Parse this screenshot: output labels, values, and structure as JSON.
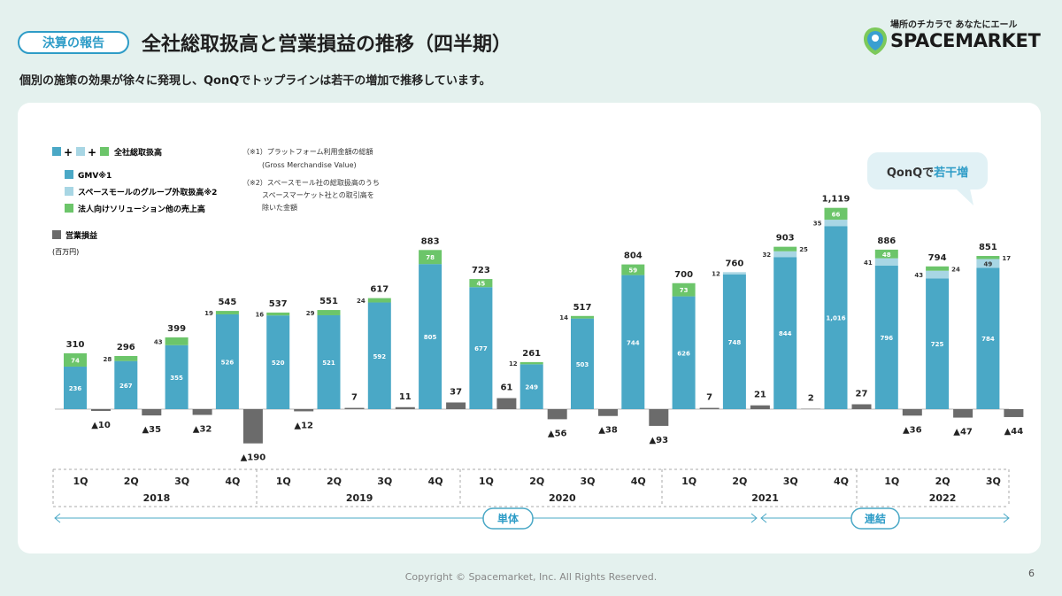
{
  "header": {
    "tag": "決算の報告",
    "title": "全社総取扱高と営業損益の推移（四半期）",
    "subtitle": "個別の施策の効果が徐々に発現し、QonQでトップラインは若干の増加で推移しています。"
  },
  "logo": {
    "tagline": "場所のチカラで あなたにエール",
    "name": "SPACEMARKET"
  },
  "footer": {
    "copyright": "Copyright © Spacemarket, Inc. All Rights Reserved.",
    "page": "6"
  },
  "colors": {
    "gmv": "#4aa8c6",
    "external": "#a8d6e4",
    "corporate": "#6cc56a",
    "op": "#6b6b6b",
    "accent": "#2e9cc7"
  },
  "legend": {
    "total_label": "全社総取扱高",
    "gmv_label": "GMV※1",
    "external_label": "スペースモールのグループ外取扱高※2",
    "corporate_label": "法人向けソリューション他の売上高",
    "op_label": "営業損益",
    "unit": "(百万円)",
    "note1_line1": "（※1）プラットフォーム利用金額の総額",
    "note1_line2": "(Gross Merchandise Value)",
    "note2_line1": "（※2）スペースモール社の総取扱高のうち",
    "note2_line2": "スペースマーケット社との取引高を",
    "note2_line3": "除いた金額"
  },
  "callout": {
    "prefix": "QonQで",
    "highlight": "若干増"
  },
  "eras": {
    "single": "単体",
    "consolidated": "連結"
  },
  "chart_data": {
    "type": "bar",
    "title": "全社総取扱高と営業損益の推移（四半期）",
    "unit": "百万円",
    "categories": [
      "1Q",
      "2Q",
      "3Q",
      "4Q",
      "1Q",
      "2Q",
      "3Q",
      "4Q",
      "1Q",
      "2Q",
      "3Q",
      "4Q",
      "1Q",
      "2Q",
      "3Q",
      "4Q",
      "1Q",
      "2Q",
      "3Q"
    ],
    "years": [
      {
        "label": "2018",
        "from": 0,
        "to": 3
      },
      {
        "label": "2019",
        "from": 4,
        "to": 7
      },
      {
        "label": "2020",
        "from": 8,
        "to": 11
      },
      {
        "label": "2021",
        "from": 12,
        "to": 15
      },
      {
        "label": "2022",
        "from": 16,
        "to": 18
      }
    ],
    "series": [
      {
        "name": "GMV",
        "values": [
          236,
          267,
          355,
          526,
          520,
          521,
          592,
          805,
          677,
          249,
          503,
          744,
          626,
          748,
          844,
          1016,
          796,
          725,
          784
        ]
      },
      {
        "name": "スペースモールのグループ外取扱高",
        "values": [
          null,
          null,
          null,
          null,
          null,
          null,
          null,
          null,
          null,
          null,
          null,
          null,
          null,
          12,
          32,
          35,
          41,
          43,
          49
        ]
      },
      {
        "name": "法人向けソリューション他の売上高",
        "values": [
          74,
          28,
          43,
          19,
          16,
          29,
          24,
          78,
          45,
          12,
          14,
          59,
          73,
          null,
          25,
          66,
          48,
          24,
          17
        ]
      },
      {
        "name": "営業損益",
        "values": [
          -10,
          -35,
          -32,
          -190,
          -12,
          7,
          11,
          37,
          61,
          -56,
          -38,
          -93,
          7,
          21,
          2,
          27,
          -36,
          -47,
          -44
        ]
      }
    ],
    "totals": [
      310,
      296,
      399,
      545,
      537,
      551,
      617,
      883,
      723,
      261,
      517,
      804,
      700,
      760,
      903,
      1119,
      886,
      794,
      851
    ],
    "total_labels": [
      "310",
      "296",
      "399",
      "545",
      "537",
      "551",
      "617",
      "883",
      "723",
      "261",
      "517",
      "804",
      "700",
      "760",
      "903",
      "1,119",
      "886",
      "794",
      "851"
    ],
    "op_labels": [
      "▲10",
      "▲35",
      "▲32",
      "▲190",
      "▲12",
      "7",
      "11",
      "37",
      "61",
      "▲56",
      "▲38",
      "▲93",
      "7",
      "21",
      "2",
      "27",
      "▲36",
      "▲47",
      "▲44"
    ],
    "gmv_labels": [
      "236",
      "267",
      "355",
      "526",
      "520",
      "521",
      "592",
      "805",
      "677",
      "249",
      "503",
      "744",
      "626",
      "748",
      "844",
      "1,016",
      "796",
      "725",
      "784"
    ],
    "ylim": [
      -200,
      1150
    ]
  }
}
